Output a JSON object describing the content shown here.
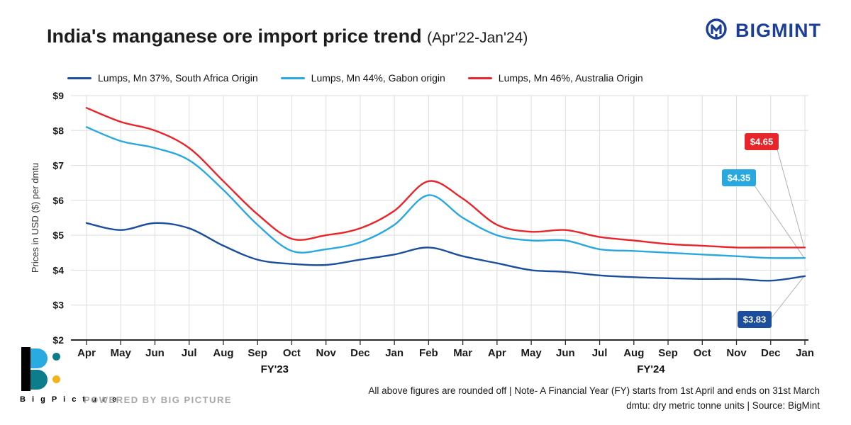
{
  "header": {
    "title": "India's manganese ore import price trend",
    "subtitle": "(Apr'22-Jan'24)",
    "brand": "BIGMINT"
  },
  "legend": [
    {
      "label": "Lumps, Mn 37%, South Africa Origin",
      "color": "#1b4e9c"
    },
    {
      "label": "Lumps, Mn 44%, Gabon origin",
      "color": "#29a8e0"
    },
    {
      "label": "Lumps, Mn 46%, Australia Origin",
      "color": "#e8252b"
    }
  ],
  "chart_data": {
    "type": "line",
    "title": "India's manganese ore import price trend (Apr'22-Jan'24)",
    "ylabel": "Prices in USD ($) per dmtu",
    "xlabel": "",
    "ylim": [
      2,
      9
    ],
    "yticks": [
      "$2",
      "$3",
      "$4",
      "$5",
      "$6",
      "$7",
      "$8",
      "$9"
    ],
    "grid": true,
    "legend_position": "top",
    "categories": [
      "Apr",
      "May",
      "Jun",
      "Jul",
      "Aug",
      "Sep",
      "Oct",
      "Nov",
      "Dec",
      "Jan",
      "Feb",
      "Mar",
      "Apr",
      "May",
      "Jun",
      "Jul",
      "Aug",
      "Sep",
      "Oct",
      "Nov",
      "Dec",
      "Jan"
    ],
    "fiscal_years": [
      {
        "label": "FY'23",
        "from": 0,
        "to": 11
      },
      {
        "label": "FY'24",
        "from": 12,
        "to": 21
      }
    ],
    "series": [
      {
        "name": "Lumps, Mn 37%, South Africa Origin",
        "color": "#1b4e9c",
        "values": [
          5.35,
          5.15,
          5.35,
          5.2,
          4.7,
          4.3,
          4.18,
          4.15,
          4.3,
          4.45,
          4.65,
          4.4,
          4.2,
          4.0,
          3.95,
          3.85,
          3.8,
          3.77,
          3.75,
          3.75,
          3.7,
          3.83
        ]
      },
      {
        "name": "Lumps, Mn 44%, Gabon origin",
        "color": "#29a8e0",
        "values": [
          8.1,
          7.7,
          7.5,
          7.15,
          6.3,
          5.3,
          4.55,
          4.6,
          4.8,
          5.3,
          6.15,
          5.5,
          5.0,
          4.85,
          4.85,
          4.6,
          4.55,
          4.5,
          4.45,
          4.4,
          4.35,
          4.35
        ]
      },
      {
        "name": "Lumps, Mn 46%, Australia Origin",
        "color": "#e8252b",
        "values": [
          8.65,
          8.25,
          8.0,
          7.5,
          6.55,
          5.6,
          4.9,
          5.0,
          5.2,
          5.7,
          6.55,
          6.05,
          5.3,
          5.1,
          5.15,
          4.95,
          4.85,
          4.75,
          4.7,
          4.65,
          4.65,
          4.65
        ]
      }
    ],
    "annotations": [
      {
        "label": "$4.65",
        "color": "#e8252b",
        "series_index": 2
      },
      {
        "label": "$4.35",
        "color": "#29a8e0",
        "series_index": 1
      },
      {
        "label": "$3.83",
        "color": "#1b4e9c",
        "series_index": 0
      }
    ]
  },
  "footer": {
    "note_line1": "All above figures are rounded off | Note- A Financial Year (FY) starts from 1st April and ends on 31st March",
    "note_line2": "dmtu: dry metric tonne units | Source: BigMint",
    "powered_by": "POWERED BY BIG PICTURE",
    "logo_text": "B i g  P i c t u r e"
  }
}
